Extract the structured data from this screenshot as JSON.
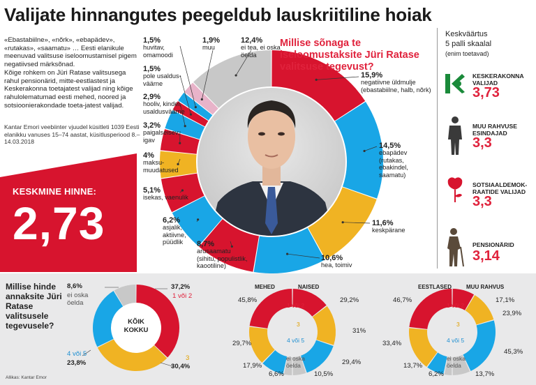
{
  "title": "Valijate hinnangutes peegeldub lauskriitiline hoiak",
  "intro": {
    "p1": "«Ebastabiilne», «nõrk», «ebapädev», «rutakas», «saamatu» … Eesti elanikule meenuvad valitsuse iseloomustamisel pigem negatiivsed märksõnad.",
    "p2": "Kõige rohkem on Jüri Ratase valitsusega rahul pensionärid, mitte-eestlastest ja Keskerakonna toetajatest valijad ning kõige rahulolematumad eesti mehed, noored ja sotsioonierakondade toeta-jatest valijad."
  },
  "survey": "Kantar Emori veebiinter vjuudel küsitleti 1039 Eesti elanikku vanuses 15–74 aastat, küsitlusperiood 8.–14.03.2018",
  "average": {
    "label": "KESKMINE HINNE:",
    "value": "2,73"
  },
  "colors": {
    "red": "#d7142e",
    "blue": "#19a6e6",
    "yellow": "#f0b323",
    "gray": "#c8c8c8",
    "pink": "#e8b3c9",
    "white": "#ffffff"
  },
  "main_question": "Millise sõnaga te iseloomustaksite Jüri Ratase valitsuse tegevust?",
  "photo": "portrait-of-juri-ratas",
  "side": {
    "title": "Keskväärtus\n5 palli skaalal",
    "subtitle": "(enim toetavad)",
    "groups": [
      {
        "name": "KESKERAKONNA\nVALIJAD",
        "value": "3,73",
        "icon": "keskerakond-logo-icon"
      },
      {
        "name": "MUU RAHVUSE\nESINDAJAD",
        "value": "3,3",
        "icon": "person-silhouette-icon"
      },
      {
        "name": "SOTSIAALDEMOK-\nRAATIDE VALIJAD",
        "value": "3,3",
        "icon": "rose-logo-icon"
      },
      {
        "name": "PENSIONÄRID",
        "value": "3,14",
        "icon": "elderly-person-icon"
      }
    ]
  },
  "chart_data": [
    {
      "type": "pie",
      "title": "Millise sõnaga te iseloomustaksite Jüri Ratase valitsuse tegevust?",
      "slices": [
        {
          "pct": "15,9%",
          "value": 15.9,
          "label": "negatiivne üldmulje\n(ebastabiilne, halb, nõrk)",
          "color": "red"
        },
        {
          "pct": "14,5%",
          "value": 14.5,
          "label": "ebapädev\n(rutakas,\nebakindel,\nsaamatu)",
          "color": "blue"
        },
        {
          "pct": "11,6%",
          "value": 11.6,
          "label": "keskpärane",
          "color": "yellow"
        },
        {
          "pct": "10,6%",
          "value": 10.6,
          "label": "hea, toimiv",
          "color": "blue"
        },
        {
          "pct": "8,7%",
          "value": 8.7,
          "label": "arusaamatu\n(sihitu, populistlik,\nkaootiline)",
          "color": "red"
        },
        {
          "pct": "6,2%",
          "value": 6.2,
          "label": "asjalik,\naktiivne,\npüüdlik",
          "color": "blue"
        },
        {
          "pct": "5,1%",
          "value": 5.1,
          "label": "isekas, vaenulik",
          "color": "red"
        },
        {
          "pct": "4%",
          "value": 4.0,
          "label": "maksu-\nmuudatused",
          "color": "yellow"
        },
        {
          "pct": "3,2%",
          "value": 3.2,
          "label": "paigalseisev,\nigav",
          "color": "red"
        },
        {
          "pct": "2,9%",
          "value": 2.9,
          "label": "hooliv, kindel,\nusaldusväärne",
          "color": "blue"
        },
        {
          "pct": "1,5%",
          "value": 1.5,
          "label": "pole usaldus-\nväärne",
          "color": "red"
        },
        {
          "pct": "1,5%",
          "value": 1.5,
          "label": "huvitav,\nomamoodi",
          "color": "blue"
        },
        {
          "pct": "1,9%",
          "value": 1.9,
          "label": "muu",
          "color": "pink"
        },
        {
          "pct": "12,4%",
          "value": 12.4,
          "label": "ei tea, ei oska\nöelda",
          "color": "gray"
        }
      ]
    },
    {
      "type": "pie",
      "title": "KÕIK KOKKU",
      "question": "Millise hinde annaksite Jüri Ratase valitsusele tegevusele?",
      "slices": [
        {
          "pct": "37,2%",
          "value": 37.2,
          "label": "1 või 2",
          "color": "red"
        },
        {
          "pct": "30,4%",
          "value": 30.4,
          "label": "3",
          "color": "yellow"
        },
        {
          "pct": "23,8%",
          "value": 23.8,
          "label": "4 või 5",
          "color": "blue"
        },
        {
          "pct": "8,6%",
          "value": 8.6,
          "label": "ei oska\nöelda",
          "color": "gray"
        }
      ]
    },
    {
      "type": "pie",
      "title": "MEHED",
      "slices": [
        {
          "pct": "45,8%",
          "value": 45.8,
          "color": "red"
        },
        {
          "pct": "29,7%",
          "value": 29.7,
          "color": "yellow"
        },
        {
          "pct": "17,9%",
          "value": 17.9,
          "color": "blue"
        },
        {
          "pct": "6,6%",
          "value": 6.6,
          "color": "gray"
        }
      ]
    },
    {
      "type": "pie",
      "title": "NAISED",
      "slices": [
        {
          "pct": "29,2%",
          "value": 29.2,
          "color": "red"
        },
        {
          "pct": "31%",
          "value": 31.0,
          "color": "yellow"
        },
        {
          "pct": "29,4%",
          "value": 29.4,
          "color": "blue"
        },
        {
          "pct": "10,5%",
          "value": 10.5,
          "color": "gray"
        }
      ]
    },
    {
      "type": "pie",
      "title": "EESTLASED",
      "slices": [
        {
          "pct": "46,7%",
          "value": 46.7,
          "color": "red"
        },
        {
          "pct": "33,4%",
          "value": 33.4,
          "color": "yellow"
        },
        {
          "pct": "13,7%",
          "value": 13.7,
          "color": "blue"
        },
        {
          "pct": "6,2%",
          "value": 6.2,
          "color": "gray"
        }
      ]
    },
    {
      "type": "pie",
      "title": "MUU RAHVUS",
      "slices": [
        {
          "pct": "17,1%",
          "value": 17.1,
          "color": "red"
        },
        {
          "pct": "23,9%",
          "value": 23.9,
          "color": "yellow"
        },
        {
          "pct": "45,3%",
          "value": 45.3,
          "color": "blue"
        },
        {
          "pct": "13,7%",
          "value": 13.7,
          "color": "gray"
        }
      ]
    }
  ],
  "pair_legend": {
    "r": "1 või 2",
    "y": "3",
    "b": "4 või 5",
    "g": "ei oska\nöelda"
  },
  "source": "Allikas: Kantar Emor"
}
